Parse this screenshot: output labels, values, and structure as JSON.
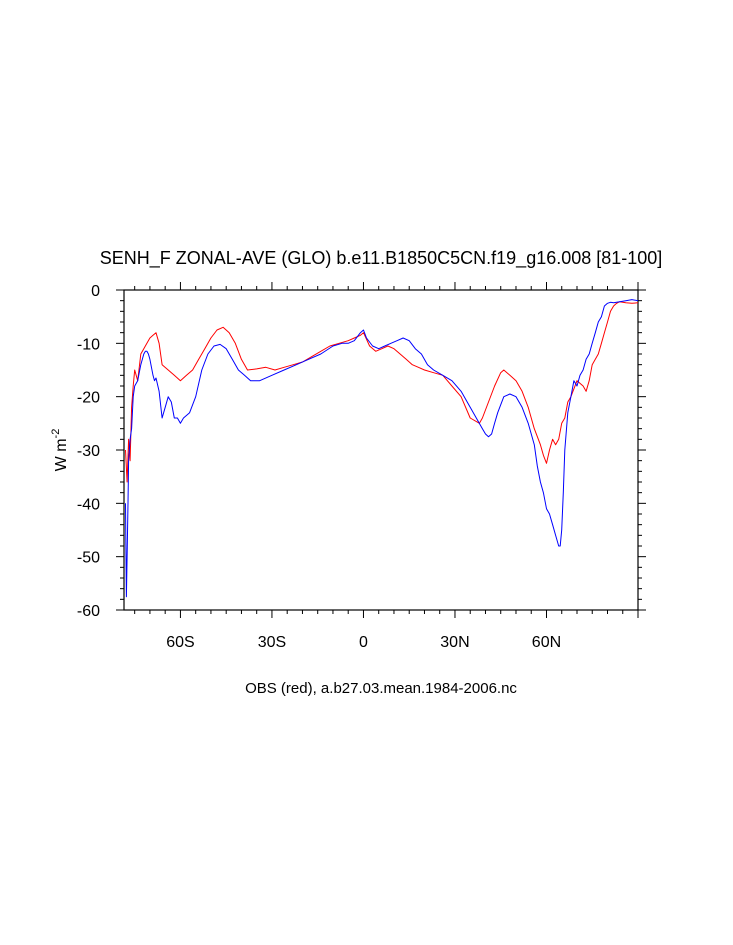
{
  "chart_data": {
    "type": "line",
    "title": "SENH_F ZONAL-AVE (GLO) b.e11.B1850C5CN.f19_g16.008 [81-100]",
    "ylabel": "W m",
    "ylabel_sup": "-2",
    "footnote": "OBS (red), a.b27.03.mean.1984-2006.nc",
    "xlim": [
      -78.5,
      90
    ],
    "ylim": [
      -60,
      0
    ],
    "x_ticks": [
      {
        "value": -60,
        "label": "60S"
      },
      {
        "value": -30,
        "label": "30S"
      },
      {
        "value": 0,
        "label": "0"
      },
      {
        "value": 30,
        "label": "30N"
      },
      {
        "value": 60,
        "label": "60N"
      }
    ],
    "y_ticks": [
      {
        "value": 0,
        "label": "0"
      },
      {
        "value": -10,
        "label": "-10"
      },
      {
        "value": -20,
        "label": "-20"
      },
      {
        "value": -30,
        "label": "-30"
      },
      {
        "value": -40,
        "label": "-40"
      },
      {
        "value": -50,
        "label": "-50"
      },
      {
        "value": -60,
        "label": "-60"
      }
    ],
    "grid": false,
    "series": [
      {
        "color": "#ff0000",
        "x": [
          -78,
          -77.5,
          -77,
          -76.5,
          -76,
          -75.5,
          -75,
          -74,
          -73,
          -72,
          -71,
          -70,
          -69,
          -68,
          -67,
          -66,
          -64,
          -62,
          -60,
          -58,
          -56,
          -54,
          -52,
          -50,
          -48,
          -46,
          -44,
          -42,
          -40,
          -38,
          -35,
          -32,
          -29,
          -26,
          -23,
          -20,
          -17,
          -14,
          -11,
          -8,
          -5,
          -3,
          -1,
          0,
          2,
          4,
          6,
          8,
          10,
          12,
          14,
          16,
          18,
          20,
          23,
          26,
          29,
          32,
          35,
          38,
          39,
          41,
          43,
          45,
          46,
          48,
          50,
          52,
          54,
          56,
          58,
          59,
          60,
          61,
          62,
          63,
          64,
          65,
          66,
          67,
          68,
          70,
          72,
          73,
          74,
          75,
          76,
          77,
          78,
          79,
          80,
          81,
          82,
          83,
          84,
          85,
          86,
          88,
          90
        ],
        "y": [
          -30,
          -36,
          -28,
          -32,
          -22,
          -18,
          -15,
          -17,
          -12,
          -11,
          -10,
          -9,
          -8.5,
          -8,
          -10,
          -14,
          -15,
          -16,
          -17,
          -16,
          -15,
          -13,
          -11,
          -9,
          -7.5,
          -7,
          -8,
          -10,
          -13,
          -15,
          -14.8,
          -14.5,
          -15,
          -14.5,
          -14,
          -13.5,
          -12.5,
          -11.5,
          -10.5,
          -10,
          -9.5,
          -9,
          -8.5,
          -8,
          -10.5,
          -11.5,
          -11,
          -10.5,
          -11,
          -12,
          -13,
          -14,
          -14.5,
          -15,
          -15.5,
          -16,
          -18,
          -20,
          -24,
          -25,
          -24,
          -21,
          -18,
          -15.5,
          -15,
          -16,
          -17,
          -19,
          -22,
          -26,
          -29,
          -31,
          -32.5,
          -30,
          -28,
          -29,
          -28,
          -25,
          -24,
          -21,
          -20,
          -17,
          -18,
          -19,
          -17,
          -14,
          -13,
          -12,
          -10,
          -8,
          -6,
          -4,
          -3,
          -2.5,
          -2.2,
          -2.3,
          -2.4,
          -2.5,
          -2.4
        ]
      },
      {
        "color": "#0000ff",
        "x": [
          -78,
          -77.7,
          -77.5,
          -77.2,
          -77,
          -76.5,
          -76,
          -75.5,
          -75,
          -74,
          -73,
          -72,
          -71.5,
          -71,
          -70.5,
          -70,
          -69,
          -68.5,
          -68,
          -67,
          -66,
          -65,
          -64,
          -63,
          -62,
          -61,
          -60,
          -59,
          -57,
          -55,
          -53,
          -51,
          -49,
          -47,
          -45,
          -43,
          -41,
          -39,
          -37,
          -34,
          -30,
          -26,
          -22,
          -18,
          -14,
          -10,
          -7,
          -5,
          -3,
          -1,
          0,
          1,
          3,
          5,
          7,
          9,
          11,
          13,
          15,
          17,
          19,
          21,
          23,
          26,
          29,
          32,
          35,
          37,
          39,
          40,
          41,
          42,
          43,
          44,
          46,
          48,
          50,
          52,
          54,
          56,
          57,
          58,
          59,
          60,
          61,
          62,
          63,
          64,
          64.5,
          65,
          65.5,
          66,
          67,
          68,
          69,
          70,
          71,
          72,
          73,
          74,
          75,
          76,
          77,
          78,
          79,
          80,
          81,
          82,
          84,
          86,
          88,
          90
        ],
        "y": [
          -40,
          -57.5,
          -50,
          -40,
          -32,
          -28,
          -26,
          -20,
          -18,
          -17,
          -14,
          -12,
          -11.5,
          -11.5,
          -12,
          -13,
          -16,
          -17,
          -16.5,
          -19,
          -24,
          -22,
          -20,
          -21,
          -24,
          -24,
          -25,
          -24,
          -23,
          -20,
          -15,
          -12,
          -10.5,
          -10.2,
          -11,
          -13,
          -15,
          -16,
          -17,
          -17,
          -16,
          -15,
          -14,
          -13,
          -12,
          -10.5,
          -10,
          -10,
          -9.5,
          -8,
          -7.5,
          -9,
          -10.5,
          -11,
          -10.5,
          -10,
          -9.5,
          -9,
          -9.5,
          -11,
          -12,
          -14,
          -15,
          -16,
          -17,
          -19,
          -22,
          -24,
          -26,
          -27,
          -27.5,
          -27,
          -25,
          -23,
          -20,
          -19.5,
          -20,
          -22,
          -25,
          -29,
          -33,
          -36,
          -38,
          -41,
          -42,
          -44,
          -46,
          -48,
          -48,
          -45,
          -38,
          -30,
          -23,
          -20,
          -17,
          -18,
          -16,
          -15,
          -13,
          -12,
          -10,
          -8,
          -6,
          -5,
          -3,
          -2.5,
          -2.3,
          -2.4,
          -2.2,
          -2.0,
          -1.8,
          -2.0
        ]
      }
    ]
  }
}
